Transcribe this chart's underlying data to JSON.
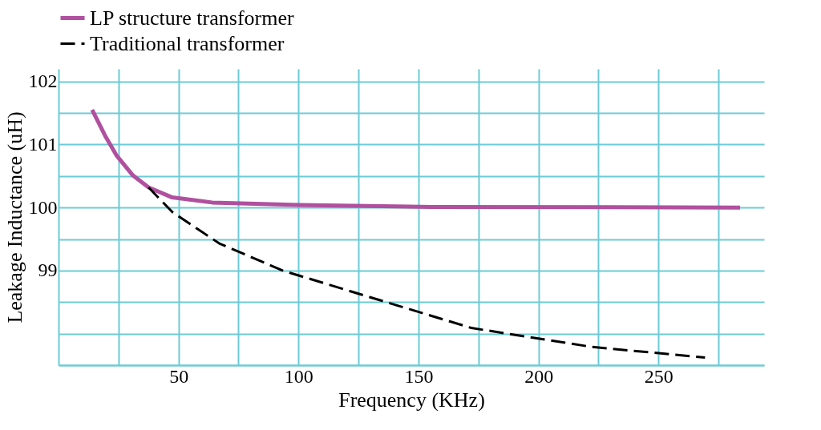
{
  "chart_data": {
    "type": "line",
    "xlabel": "Frequency (KHz)",
    "ylabel": "Leakage Inductance (uH)",
    "xlim": [
      0,
      294
    ],
    "ylim": [
      97.5,
      102.2
    ],
    "xticks": [
      {
        "value": 25,
        "label": null
      },
      50,
      100,
      150,
      200,
      250,
      {
        "value": 75,
        "label": null
      },
      {
        "value": 125,
        "label": null
      },
      {
        "value": 175,
        "label": null
      },
      {
        "value": 225,
        "label": null
      },
      {
        "value": 275,
        "label": null
      }
    ],
    "yticks": [
      {
        "value": 97.5,
        "label": null
      },
      {
        "value": 98,
        "label": null
      },
      {
        "value": 98.5,
        "label": null
      },
      99,
      {
        "value": 99.5,
        "label": null
      },
      100,
      {
        "value": 100.5,
        "label": null
      },
      101,
      {
        "value": 101.5,
        "label": null
      },
      102
    ],
    "grid": true,
    "legend": "top",
    "series": [
      {
        "name": "LP structure transformer",
        "color": "#b0509e",
        "line_style": "solid",
        "x": [
          14,
          19.4,
          24.3,
          31,
          37.5,
          47.4,
          64,
          100,
          156,
          284
        ],
        "values": [
          101.55,
          101.14,
          100.82,
          100.51,
          100.32,
          100.16,
          100.08,
          100.04,
          100.01,
          100.0
        ]
      },
      {
        "name": "Traditional transformer",
        "color": "#000000",
        "line_style": "dashed",
        "x": [
          37.5,
          47.4,
          67,
          93.4,
          129.6,
          172,
          222,
          269.4
        ],
        "values": [
          100.32,
          99.93,
          99.43,
          99.0,
          98.58,
          98.09,
          97.79,
          97.62
        ]
      }
    ]
  }
}
